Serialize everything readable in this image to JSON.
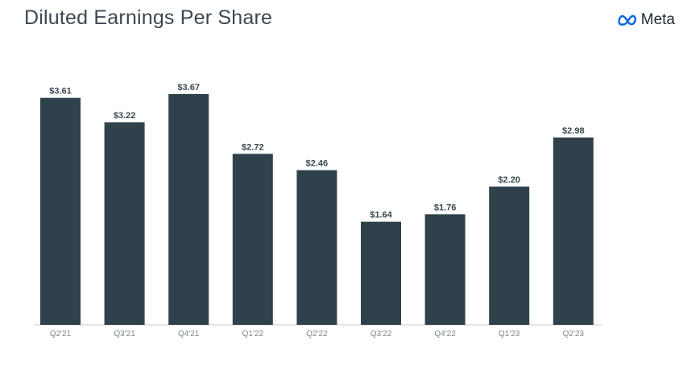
{
  "header": {
    "title": "Diluted Earnings Per Share",
    "logo_text": "Meta",
    "logo_icon": "meta-infinity-icon"
  },
  "colors": {
    "bar": "#2f424c",
    "axis": "#c8cdd0",
    "logo_blue": "#0a66e0"
  },
  "chart_data": {
    "type": "bar",
    "title": "Diluted Earnings Per Share",
    "xlabel": "",
    "ylabel": "",
    "categories": [
      "Q2'21",
      "Q3'21",
      "Q4'21",
      "Q1'22",
      "Q2'22",
      "Q3'22",
      "Q4'22",
      "Q1'23",
      "Q2'23"
    ],
    "values": [
      3.61,
      3.22,
      3.67,
      2.72,
      2.46,
      1.64,
      1.76,
      2.2,
      2.98
    ],
    "value_labels": [
      "$3.61",
      "$3.22",
      "$3.67",
      "$2.72",
      "$2.46",
      "$1.64",
      "$1.76",
      "$2.20",
      "$2.98"
    ],
    "ylim": [
      0,
      3.67
    ],
    "grid": false,
    "legend": "none"
  }
}
